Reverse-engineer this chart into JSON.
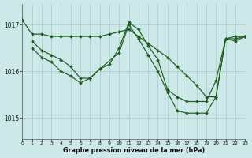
{
  "xlabel": "Graphe pression niveau de la mer (hPa)",
  "bg_color": "#cce8e8",
  "grid_color": "#aad0d0",
  "line_color": "#1f5c1f",
  "xlim": [
    0,
    23
  ],
  "ylim": [
    1014.55,
    1017.45
  ],
  "yticks": [
    1015,
    1016,
    1017
  ],
  "xticks": [
    0,
    1,
    2,
    3,
    4,
    5,
    6,
    7,
    8,
    9,
    10,
    11,
    12,
    13,
    14,
    15,
    16,
    17,
    18,
    19,
    20,
    21,
    22,
    23
  ],
  "series": [
    {
      "x": [
        0,
        1,
        2,
        3,
        4,
        5,
        6,
        7,
        8,
        9,
        10,
        11,
        12,
        13,
        14,
        15,
        16,
        17,
        18,
        19,
        20,
        21,
        22,
        23
      ],
      "y": [
        1017.1,
        1016.8,
        1016.8,
        1016.75,
        1016.75,
        1016.75,
        1016.75,
        1016.75,
        1016.75,
        1016.8,
        1016.85,
        1016.9,
        1016.75,
        1016.6,
        1016.45,
        1016.3,
        1016.1,
        1015.9,
        1015.7,
        1015.45,
        1015.45,
        1016.7,
        1016.75,
        1016.75
      ]
    },
    {
      "x": [
        1,
        2,
        3,
        4,
        5,
        6,
        7,
        8,
        9,
        10,
        11,
        12,
        13,
        14,
        15,
        16,
        17,
        18,
        19,
        20,
        21,
        22,
        23
      ],
      "y": [
        1016.65,
        1016.45,
        1016.35,
        1016.25,
        1016.1,
        1015.85,
        1015.85,
        1016.05,
        1016.15,
        1016.5,
        1017.05,
        1016.9,
        1016.55,
        1016.25,
        1015.6,
        1015.45,
        1015.35,
        1015.35,
        1015.35,
        1015.8,
        1016.7,
        1016.7,
        1016.75
      ]
    },
    {
      "x": [
        1,
        2,
        3,
        4,
        5,
        6,
        7,
        8,
        10,
        11,
        12,
        13,
        14,
        15,
        16,
        17,
        18,
        19,
        20,
        21,
        22,
        23
      ],
      "y": [
        1016.5,
        1016.3,
        1016.2,
        1016.0,
        1015.9,
        1015.75,
        1015.85,
        1016.05,
        1016.4,
        1017.0,
        1016.7,
        1016.35,
        1016.0,
        1015.55,
        1015.15,
        1015.1,
        1015.1,
        1015.1,
        1015.45,
        1016.7,
        1016.65,
        1016.75
      ]
    }
  ]
}
